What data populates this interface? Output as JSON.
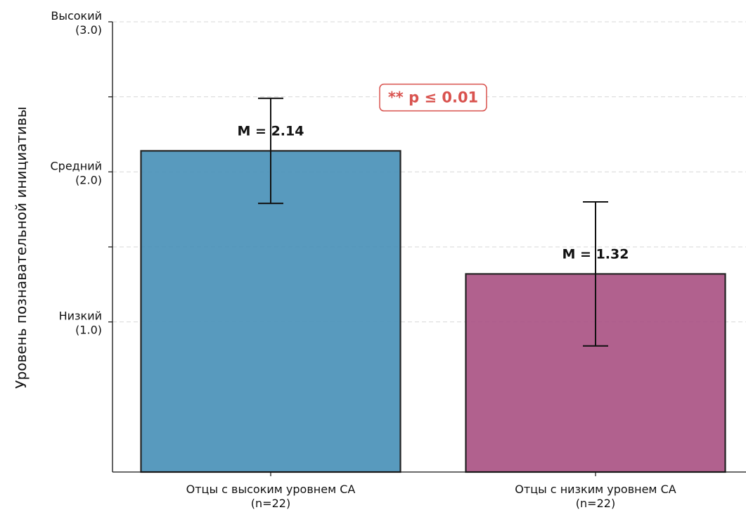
{
  "chart_data": {
    "type": "bar",
    "title": "",
    "ylabel": "Уровень познавательной инициативы",
    "xlabel": "",
    "ylim": [
      0,
      3.0
    ],
    "grid": "horizontal-dashed",
    "categories": [
      {
        "line1": "Отцы с высоким уровнем СА",
        "line2": "(n=22)"
      },
      {
        "line1": "Отцы с низким уровнем СА",
        "line2": "(n=22)"
      }
    ],
    "values": [
      2.14,
      1.32
    ],
    "error": [
      {
        "low": 1.79,
        "high": 2.49
      },
      {
        "low": 0.84,
        "high": 1.8
      }
    ],
    "bar_labels": [
      "M = 2.14",
      "M = 1.32"
    ],
    "colors": [
      "#4a91b8",
      "#aa5484"
    ],
    "y_ticks": [
      {
        "value": 3.0,
        "line1": "Высокий",
        "line2": "(3.0)"
      },
      {
        "value": 2.5,
        "line1": "",
        "line2": ""
      },
      {
        "value": 2.0,
        "line1": "Средний",
        "line2": "(2.0)"
      },
      {
        "value": 1.5,
        "line1": "",
        "line2": ""
      },
      {
        "value": 1.0,
        "line1": "Низкий",
        "line2": "(1.0)"
      }
    ],
    "annotation": {
      "text": "** p ≤ 0.01",
      "color": "#d9534f",
      "y": 2.5
    }
  }
}
